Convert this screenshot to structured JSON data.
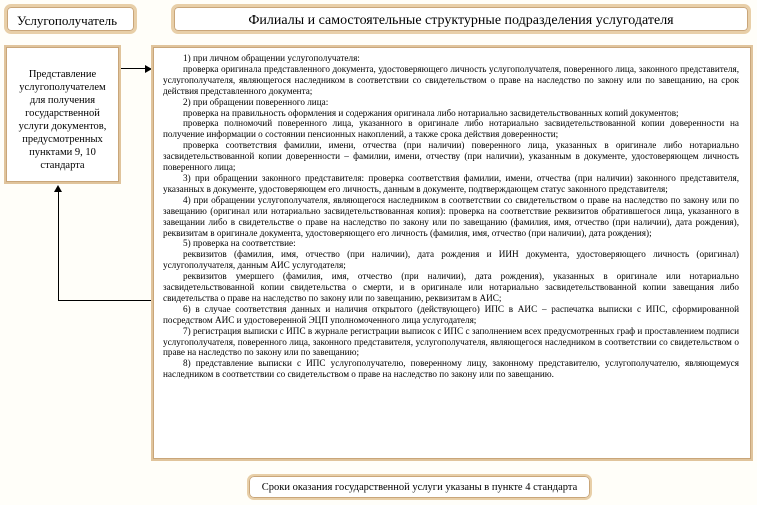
{
  "header": {
    "left_title": "Услугополучатель",
    "right_title": "Филиалы и самостоятельные структурные подразделения услугодателя"
  },
  "left_box": {
    "text": "Представление услугополучателем для получения государственной услуги документов, предусмотренных пунктами 9, 10 стандарта"
  },
  "main_box": {
    "paragraphs": [
      "1) при личном обращении услугополучателя:",
      "проверка оригинала представленного документа, удостоверяющего личность услугополучателя, поверенного лица, законного представителя, услугополучателя, являющегося наследником в соответствии со свидетельством о праве на наследство по закону или по завещанию, на срок действия представленного документа;",
      "2) при обращении поверенного лица:",
      "проверка на правильность оформления и содержания оригинала либо нотариально засвидетельствованных копий документов;",
      "проверка полномочий поверенного лица, указанного в оригинале либо нотариально засвидетельствованной копии доверенности на получение информации о состоянии пенсионных накоплений, а также срока действия доверенности;",
      "проверка соответствия фамилии, имени, отчества (при наличии) поверенного лица, указанных в оригинале либо нотариально засвидетельствованной копии доверенности – фамилии, имени, отчеству (при наличии), указанным в документе, удостоверяющем личность поверенного лица;",
      "3) при обращении законного представителя: проверка соответствия фамилии, имени, отчества (при наличии) законного представителя, указанных в документе, удостоверяющем его личность, данным в документе, подтверждающем статус законного представителя;",
      "4) при обращении услугополучателя, являющегося наследником в соответствии со свидетельством о праве на наследство по закону или по завещанию (оригинал или нотариально засвидетельствованная копия): проверка на соответствие реквизитов обратившегося лица, указанного в завещании либо в свидетельстве о праве на наследство по закону или по завещанию (фамилия, имя, отчество (при наличии), дата рождения), реквизитам в оригинале документа, удостоверяющего его личность (фамилия, имя, отчество (при наличии), дата рождения);",
      "5) проверка на соответствие:",
      "реквизитов (фамилия, имя, отчество (при наличии), дата рождения и ИИН документа, удостоверяющего личность (оригинал) услугополучателя, данным АИС услугодателя;",
      "реквизитов умершего (фамилия, имя, отчество (при наличии), дата рождения), указанных в оригинале или нотариально засвидетельствованной копии свидетельства о смерти, и в оригинале или нотариально засвидетельствованной копии завещания либо свидетельства о праве на наследство по закону или по завещанию, реквизитам в АИС;",
      "6) в случае соответствия данных и наличия открытого (действующего) ИПС в АИС – распечатка выписки с ИПС, сформированной посредством АИС и удостоверенной ЭЦП уполномоченного лица услугодателя;",
      "7) регистрация выписки с ИПС в журнале регистрации выписок с ИПС с заполнением всех предусмотренных граф и проставлением подписи услугополучателя, поверенного лица, законного представителя, услугополучателя, являющегося наследником в соответствии со свидетельством о праве на наследство по закону или по завещанию;",
      "8) представление выписки с ИПС услугополучателю, поверенному лицу, законному представителю, услугополучателю, являющемуся наследником в соответствии со свидетельством о праве на наследство по закону или по завещанию."
    ]
  },
  "footer": {
    "text": "Сроки оказания государственной услуги указаны в пункте 4 стандарта"
  },
  "colors": {
    "border": "#e0c49c",
    "border_dark": "#c9a67a"
  }
}
